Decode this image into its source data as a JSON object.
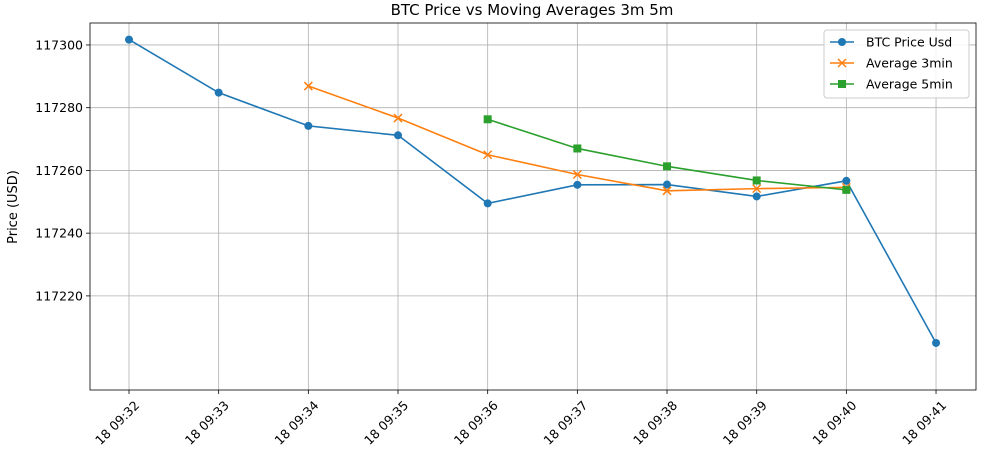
{
  "chart_data": {
    "type": "line",
    "title": "BTC Price vs Moving Averages 3m 5m",
    "xlabel": "",
    "ylabel": "Price (USD)",
    "x": [
      "18 09:32",
      "18 09:33",
      "18 09:34",
      "18 09:35",
      "18 09:36",
      "18 09:37",
      "18 09:38",
      "18 09:39",
      "18 09:40",
      "18 09:41"
    ],
    "ylim": [
      117190,
      117307
    ],
    "yticks": [
      117220,
      117240,
      117260,
      117280,
      117300
    ],
    "grid": true,
    "legend_position": "top-right",
    "series": [
      {
        "name": "BTC Price Usd",
        "color": "#1f77b4",
        "marker": "circle",
        "values": [
          117301.7,
          117284.8,
          117274.2,
          117271.2,
          117249.5,
          117255.4,
          117255.5,
          117251.7,
          117256.7,
          117205.0
        ]
      },
      {
        "name": "Average 3min",
        "color": "#ff7f0e",
        "marker": "x",
        "values": [
          null,
          null,
          117286.9,
          117276.7,
          117265.0,
          117258.7,
          117253.5,
          117254.2,
          117254.6,
          null
        ]
      },
      {
        "name": "Average 5min",
        "color": "#2ca02c",
        "marker": "square",
        "values": [
          null,
          null,
          null,
          null,
          117276.3,
          117267.0,
          117261.3,
          117256.8,
          117253.8,
          null
        ]
      }
    ]
  }
}
